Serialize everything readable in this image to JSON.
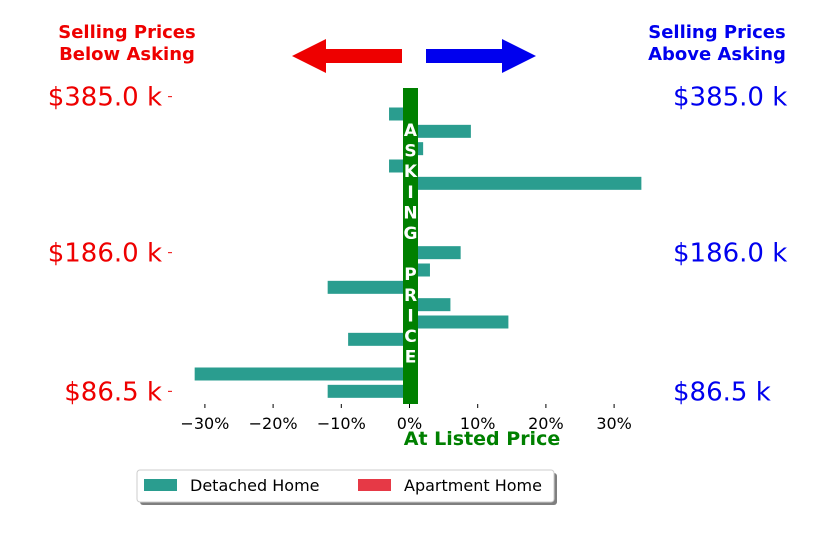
{
  "header": {
    "left_label": [
      "Selling Prices",
      "Below Asking"
    ],
    "right_label": [
      "Selling Prices",
      "Above Asking"
    ]
  },
  "colors": {
    "below": "#ee0000",
    "above": "#0000ee",
    "bar": "#2a9d8f",
    "apartment": "#e63946",
    "center": "#008000",
    "center_text": "#ffffff"
  },
  "icons": {
    "left_arrow": "left-arrow-icon",
    "right_arrow": "right-arrow-icon"
  },
  "center_bar": {
    "letters": [
      "A",
      "S",
      "K",
      "I",
      "N",
      "G",
      "",
      "P",
      "R",
      "I",
      "C",
      "E"
    ]
  },
  "chart_data": {
    "type": "bar",
    "orientation": "horizontal",
    "title": "",
    "xlabel": "At Listed Price",
    "ylabel": "",
    "xlim": [
      -35,
      35
    ],
    "xticks": [
      -30,
      -20,
      -10,
      0,
      10,
      20,
      30
    ],
    "xtick_labels": [
      "−30%",
      "−20%",
      "−10%",
      "0%",
      "10%",
      "20%",
      "30%"
    ],
    "y_tick_labels": [
      "$385.0 k",
      "$186.0 k",
      "$86.5 k"
    ],
    "y_tick_rows": [
      0,
      9,
      17
    ],
    "row_count": 18,
    "series": [
      {
        "name": "Detached Home",
        "values": [
          0,
          -3,
          9,
          2,
          -3,
          34,
          0,
          0,
          0,
          7.5,
          3,
          -12,
          6,
          14.5,
          -9,
          0,
          -31.5,
          -12
        ]
      },
      {
        "name": "Apartment Home",
        "values": []
      }
    ],
    "legend": {
      "position": "bottom-center",
      "entries": [
        "Detached Home",
        "Apartment Home"
      ]
    },
    "grid": false
  }
}
